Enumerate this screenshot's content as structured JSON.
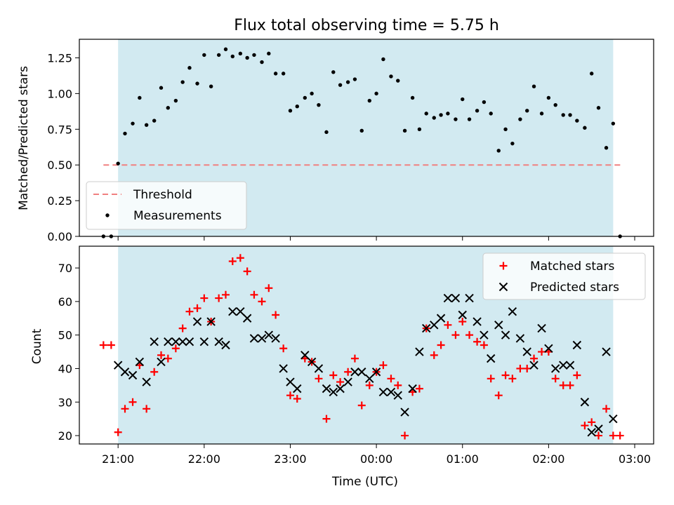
{
  "chart_data": [
    {
      "type": "scatter",
      "title": "Flux total observing time = 5.75 h",
      "xlabel": "",
      "ylabel": "Matched/Predicted stars",
      "x_unit": "hours after 21:00 UTC",
      "xlim": [
        -0.45,
        6.22
      ],
      "ylim": [
        0.0,
        1.38
      ],
      "yticks": [
        "0.00",
        "0.25",
        "0.50",
        "0.75",
        "1.00",
        "1.25"
      ],
      "shaded_region": {
        "x0": 0.0,
        "x1": 5.75,
        "color": "#add8e6"
      },
      "threshold": {
        "value": 0.5,
        "x0": -0.17,
        "x1": 5.85,
        "color": "#f08080",
        "label": "Threshold"
      },
      "legend": {
        "position": "lower-left",
        "entries": [
          "Threshold",
          "Measurements"
        ]
      },
      "series": [
        {
          "name": "Measurements",
          "marker": "dot",
          "color": "#000000",
          "x": [
            -0.17,
            -0.08,
            0.0,
            0.08,
            0.17,
            0.25,
            0.33,
            0.42,
            0.5,
            0.58,
            0.67,
            0.75,
            0.83,
            0.92,
            1.0,
            1.08,
            1.17,
            1.25,
            1.33,
            1.42,
            1.5,
            1.58,
            1.67,
            1.75,
            1.83,
            1.92,
            2.0,
            2.08,
            2.17,
            2.25,
            2.33,
            2.42,
            2.5,
            2.58,
            2.67,
            2.75,
            2.83,
            2.92,
            3.0,
            3.08,
            3.17,
            3.25,
            3.33,
            3.42,
            3.5,
            3.58,
            3.67,
            3.75,
            3.83,
            3.92,
            4.0,
            4.08,
            4.17,
            4.25,
            4.33,
            4.42,
            4.5,
            4.58,
            4.67,
            4.75,
            4.83,
            4.92,
            5.0,
            5.08,
            5.17,
            5.25,
            5.33,
            5.42,
            5.5,
            5.58,
            5.67,
            5.75,
            5.83
          ],
          "y": [
            0.0,
            0.0,
            0.51,
            0.72,
            0.79,
            0.97,
            0.78,
            0.81,
            1.04,
            0.9,
            0.95,
            1.08,
            1.18,
            1.07,
            1.27,
            1.05,
            1.27,
            1.31,
            1.26,
            1.28,
            1.25,
            1.27,
            1.22,
            1.28,
            1.14,
            1.14,
            0.88,
            0.91,
            0.97,
            1.0,
            0.92,
            0.73,
            1.15,
            1.06,
            1.08,
            1.1,
            0.74,
            0.95,
            1.0,
            1.24,
            1.12,
            1.09,
            0.74,
            0.97,
            0.75,
            0.86,
            0.83,
            0.85,
            0.86,
            0.82,
            0.96,
            0.82,
            0.88,
            0.94,
            0.86,
            0.6,
            0.75,
            0.65,
            0.82,
            0.88,
            1.05,
            0.86,
            0.97,
            0.92,
            0.85,
            0.85,
            0.81,
            0.76,
            1.14,
            0.9,
            0.62,
            0.79,
            0.0
          ]
        }
      ]
    },
    {
      "type": "scatter",
      "title": "",
      "xlabel": "Time (UTC)",
      "ylabel": "Count",
      "x_unit": "hours after 21:00 UTC",
      "xlim": [
        -0.45,
        6.22
      ],
      "ylim": [
        17.5,
        76.5
      ],
      "xticks": [
        {
          "value": 0,
          "label": "21:00"
        },
        {
          "value": 1,
          "label": "22:00"
        },
        {
          "value": 2,
          "label": "23:00"
        },
        {
          "value": 3,
          "label": "00:00"
        },
        {
          "value": 4,
          "label": "01:00"
        },
        {
          "value": 5,
          "label": "02:00"
        },
        {
          "value": 6,
          "label": "03:00"
        }
      ],
      "yticks": [
        "20",
        "30",
        "40",
        "50",
        "60",
        "70"
      ],
      "shaded_region": {
        "x0": 0.0,
        "x1": 5.75,
        "color": "#add8e6"
      },
      "legend": {
        "position": "top-right",
        "entries": [
          "Matched stars",
          "Predicted stars"
        ]
      },
      "series": [
        {
          "name": "Matched stars",
          "marker": "plus",
          "color": "#ff0000",
          "x": [
            -0.17,
            -0.08,
            0.0,
            0.08,
            0.17,
            0.25,
            0.33,
            0.42,
            0.5,
            0.58,
            0.67,
            0.75,
            0.83,
            0.92,
            1.0,
            1.08,
            1.17,
            1.25,
            1.33,
            1.42,
            1.5,
            1.58,
            1.67,
            1.75,
            1.83,
            1.92,
            2.0,
            2.08,
            2.17,
            2.25,
            2.33,
            2.42,
            2.5,
            2.58,
            2.67,
            2.75,
            2.83,
            2.92,
            3.0,
            3.08,
            3.17,
            3.25,
            3.33,
            3.42,
            3.5,
            3.58,
            3.67,
            3.75,
            3.83,
            3.92,
            4.0,
            4.08,
            4.17,
            4.25,
            4.33,
            4.42,
            4.5,
            4.58,
            4.67,
            4.75,
            4.83,
            4.92,
            5.0,
            5.08,
            5.17,
            5.25,
            5.33,
            5.42,
            5.5,
            5.58,
            5.67,
            5.75,
            5.83
          ],
          "y": [
            47,
            47,
            21,
            28,
            30,
            41,
            28,
            39,
            44,
            43,
            46,
            52,
            57,
            58,
            61,
            54,
            61,
            62,
            72,
            73,
            69,
            62,
            60,
            64,
            56,
            46,
            32,
            31,
            43,
            42,
            37,
            25,
            38,
            36,
            39,
            43,
            29,
            35,
            39,
            41,
            37,
            35,
            20,
            33,
            34,
            52,
            44,
            47,
            53,
            50,
            54,
            50,
            48,
            47,
            37,
            32,
            38,
            37,
            40,
            40,
            43,
            45,
            45,
            37,
            35,
            35,
            38,
            23,
            24,
            20,
            28,
            20,
            20
          ]
        },
        {
          "name": "Predicted stars",
          "marker": "x",
          "color": "#000000",
          "x": [
            0.0,
            0.08,
            0.17,
            0.25,
            0.33,
            0.42,
            0.5,
            0.58,
            0.67,
            0.75,
            0.83,
            0.92,
            1.0,
            1.08,
            1.17,
            1.25,
            1.33,
            1.42,
            1.5,
            1.58,
            1.67,
            1.75,
            1.83,
            1.92,
            2.0,
            2.08,
            2.17,
            2.25,
            2.33,
            2.42,
            2.5,
            2.58,
            2.67,
            2.75,
            2.83,
            2.92,
            3.0,
            3.08,
            3.17,
            3.25,
            3.33,
            3.42,
            3.5,
            3.58,
            3.67,
            3.75,
            3.83,
            3.92,
            4.0,
            4.08,
            4.17,
            4.25,
            4.33,
            4.42,
            4.5,
            4.58,
            4.67,
            4.75,
            4.83,
            4.92,
            5.0,
            5.08,
            5.17,
            5.25,
            5.33,
            5.42,
            5.5,
            5.58,
            5.67,
            5.75
          ],
          "y": [
            41,
            39,
            38,
            42,
            36,
            48,
            42,
            48,
            48,
            48,
            48,
            54,
            48,
            54,
            48,
            47,
            57,
            57,
            55,
            49,
            49,
            50,
            49,
            40,
            36,
            34,
            44,
            42,
            40,
            34,
            33,
            34,
            36,
            39,
            39,
            37,
            39,
            33,
            33,
            32,
            27,
            34,
            45,
            52,
            53,
            55,
            61,
            61,
            56,
            61,
            54,
            50,
            43,
            53,
            50,
            57,
            49,
            45,
            41,
            52,
            46,
            40,
            41,
            41,
            47,
            30,
            21,
            22,
            45,
            25
          ]
        }
      ]
    }
  ]
}
